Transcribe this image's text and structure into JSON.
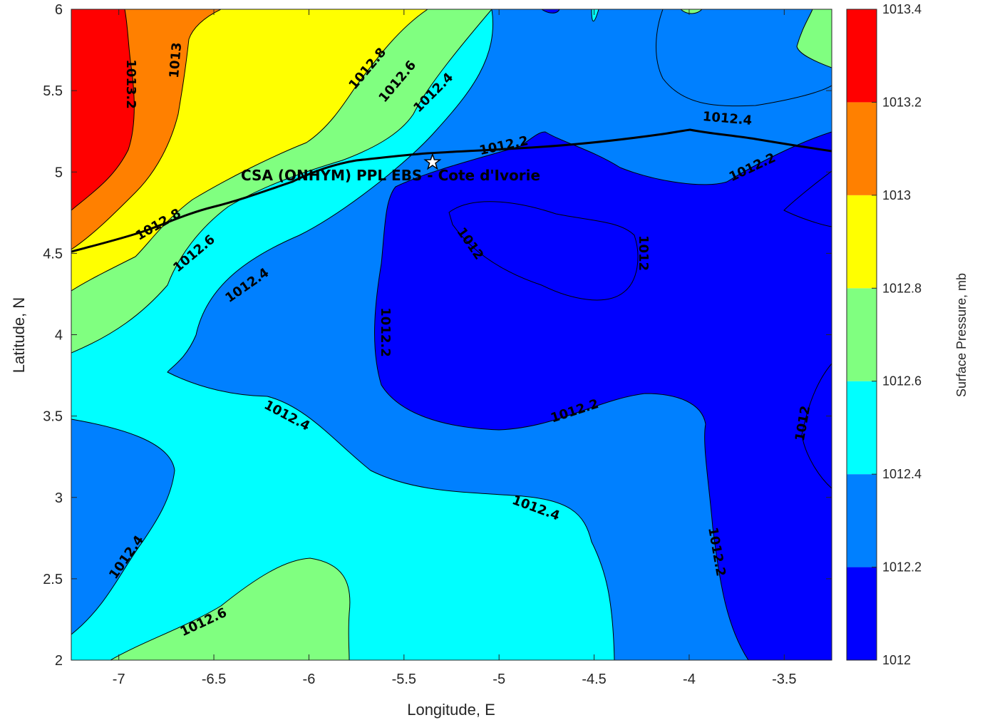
{
  "chart_data": {
    "type": "contour",
    "title": "",
    "xlabel": "Longitude, E",
    "ylabel": "Latitude, N",
    "xlim": [
      -7.25,
      -3.25
    ],
    "ylim": [
      2,
      6
    ],
    "xticks": [
      "-7",
      "-6.5",
      "-6",
      "-5.5",
      "-5",
      "-4.5",
      "-4",
      "-3.5"
    ],
    "yticks": [
      "2",
      "2.5",
      "3",
      "3.5",
      "4",
      "4.5",
      "5",
      "5.5",
      "6"
    ],
    "annotation": "CSA (ONHYM) PPL EBS  - Cote d'Ivorie",
    "site": {
      "lon": -5.35,
      "lat": 5.06
    },
    "contour_levels": [
      "1012",
      "1012.2",
      "1012.4",
      "1012.6",
      "1012.8",
      "1013",
      "1013.2"
    ],
    "contour_labels": [
      "1013.2",
      "1013",
      "1012.8",
      "1012.6",
      "1012.4",
      "1012.2",
      "1012",
      "1012",
      "1012.2",
      "1012.4",
      "1012.2",
      "1012.8",
      "1012.6",
      "1012.4",
      "1012.4",
      "1012.2",
      "1012",
      "1012.2",
      "1012.4",
      "1012.4",
      "1012.6"
    ],
    "colorbar": {
      "label": "Surface Pressure, mb",
      "ticks": [
        "1012",
        "1012.2",
        "1012.4",
        "1012.6",
        "1012.8",
        "1013",
        "1013.2",
        "1013.4"
      ],
      "colors": [
        "#0000ff",
        "#0080ff",
        "#00ffff",
        "#80ff80",
        "#ffff00",
        "#ff8000",
        "#ff0000",
        "#800000"
      ]
    },
    "grid": false
  }
}
